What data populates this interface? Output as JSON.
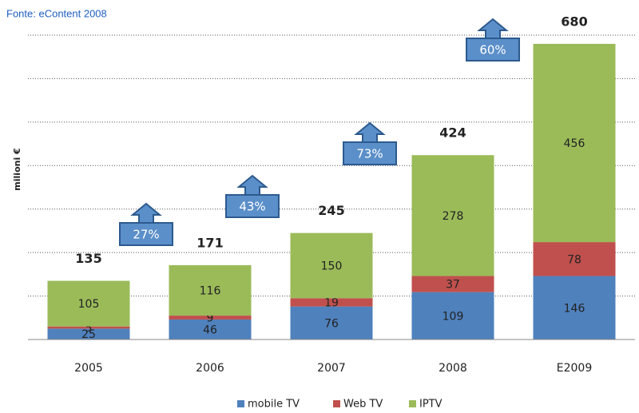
{
  "chart_data": {
    "type": "stacked_bar",
    "title": "Fonte: eContent 2008",
    "ylabel": "milioni €",
    "categories": [
      "2005",
      "2006",
      "2007",
      "2008",
      "E2009"
    ],
    "series": [
      {
        "name": "mobile TV",
        "color": "#4f81bd",
        "values": [
          25,
          46,
          76,
          109,
          146
        ]
      },
      {
        "name": "Web TV",
        "color": "#c0504d",
        "values": [
          5,
          9,
          19,
          37,
          78
        ]
      },
      {
        "name": "IPTV",
        "color": "#9bbb59",
        "values": [
          105,
          116,
          150,
          278,
          456
        ]
      }
    ],
    "totals": [
      135,
      171,
      245,
      424,
      680
    ],
    "growth": {
      "values": [
        27,
        43,
        73,
        60
      ],
      "value_labels": [
        "27%",
        "43%",
        "73%",
        "60%"
      ]
    },
    "ylim": [
      0,
      700
    ],
    "yticks": [
      0,
      100,
      200,
      300,
      400,
      500,
      600,
      700
    ],
    "grid": true
  }
}
